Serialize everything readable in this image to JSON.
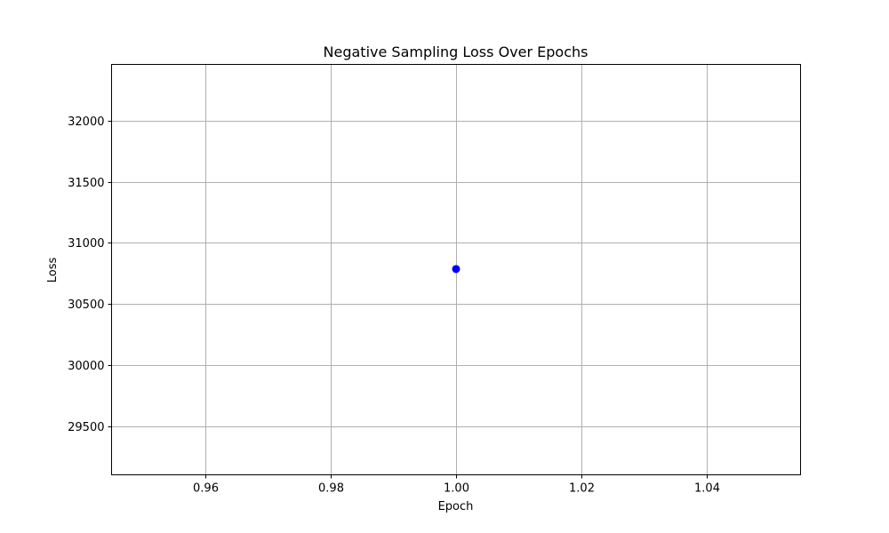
{
  "chart_data": {
    "type": "line",
    "title": "Negative Sampling Loss Over Epochs",
    "xlabel": "Epoch",
    "ylabel": "Loss",
    "xlim": [
      0.945,
      1.055
    ],
    "ylim": [
      29100,
      32460
    ],
    "xticks": [
      0.96,
      0.98,
      1.0,
      1.02,
      1.04
    ],
    "xtick_labels": [
      "0.96",
      "0.98",
      "1.00",
      "1.02",
      "1.04"
    ],
    "yticks": [
      29500,
      30000,
      30500,
      31000,
      31500,
      32000
    ],
    "ytick_labels": [
      "29500",
      "30000",
      "30500",
      "31000",
      "31500",
      "32000"
    ],
    "grid": true,
    "series": [
      {
        "color": "#0000ff",
        "marker": "circle",
        "x": [
          1
        ],
        "y": [
          30785
        ]
      }
    ]
  }
}
